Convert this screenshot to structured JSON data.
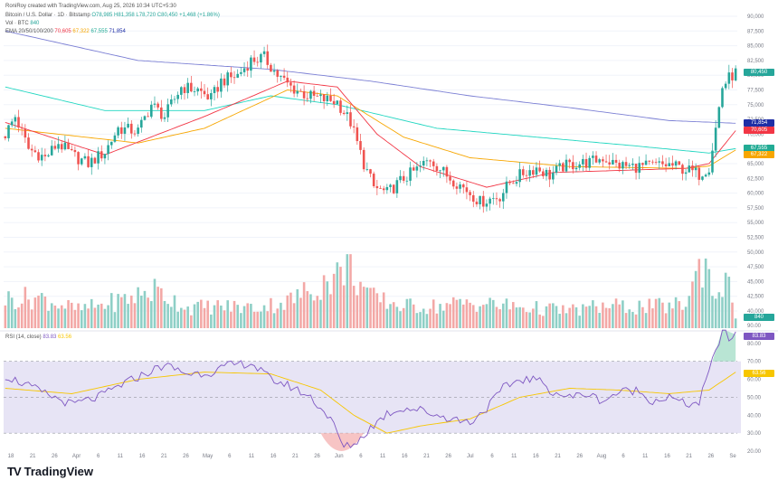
{
  "header": {
    "created_by": "RoniRoy created with TradingView.com, Aug 25, 2026 10:34 UTC+5:30",
    "symbol_line": "Bitcoin / U.S. Dollar · 1D · Bitstamp",
    "ohlc": "O78,985 H81,358 L78,720 C80,450 +1,468 (+1.86%)",
    "vol_line": "Vol · BTC",
    "vol_value": "840",
    "ema_line": "EMA 20/50/100/200",
    "ema20": "70,605",
    "ema50": "67,322",
    "ema100": "67,555",
    "ema200": "71,854",
    "rsi_line": "RSI (14, close)",
    "rsi_value": "83.83",
    "rsi_ma": "63.56"
  },
  "price_axis": {
    "labels": [
      "90,000",
      "87,500",
      "85,000",
      "82,500",
      "80,000",
      "77,500",
      "75,000",
      "72,500",
      "70,000",
      "67,500",
      "65,000",
      "62,500",
      "60,000",
      "57,500",
      "55,000",
      "52,500",
      "50,000",
      "47,500",
      "45,000",
      "42,500",
      "40,000"
    ],
    "tags": [
      {
        "text": "80,450",
        "color": "#26a69a"
      },
      {
        "text": "71,854",
        "color": "#1e2ea6"
      },
      {
        "text": "70,605",
        "color": "#f23645"
      },
      {
        "text": "67,555",
        "color": "#22ab94"
      },
      {
        "text": "67,322",
        "color": "#f7a600"
      }
    ],
    "vol_tag": "840"
  },
  "rsi_axis": {
    "labels": [
      "90.00",
      "80.00",
      "70.00",
      "60.00",
      "50.00",
      "40.00",
      "30.00",
      "20.00"
    ],
    "tags": [
      {
        "text": "83.83",
        "color": "#7e57c2"
      },
      {
        "text": "63.56",
        "color": "#f7c600"
      }
    ]
  },
  "time_axis": {
    "labels": [
      "18",
      "21",
      "26",
      "Apr",
      "6",
      "11",
      "16",
      "21",
      "26",
      "May",
      "6",
      "11",
      "16",
      "21",
      "26",
      "Jun",
      "6",
      "11",
      "16",
      "21",
      "26",
      "Jul",
      "6",
      "11",
      "16",
      "21",
      "26",
      "Aug",
      "6",
      "11",
      "16",
      "21",
      "26",
      "Se"
    ]
  },
  "brand": {
    "text": "TradingView",
    "mark": "TV"
  },
  "colors": {
    "up": "#26a69a",
    "down": "#ef5350",
    "ema20": "#f23645",
    "ema50": "#f7a600",
    "ema100": "#1fd6c0",
    "ema200": "#7b7fd4",
    "rsi": "#7e57c2",
    "rsi_ma": "#f7c600"
  },
  "chart_data": {
    "type": "candlestick",
    "title": "Bitcoin / U.S. Dollar · 1D · Bitstamp",
    "x_start": "2024-03-16",
    "anchors": [
      [
        0,
        70000
      ],
      [
        3,
        73000
      ],
      [
        7,
        67500
      ],
      [
        12,
        66000
      ],
      [
        16,
        68500
      ],
      [
        20,
        66500
      ],
      [
        25,
        65000
      ],
      [
        30,
        67000
      ],
      [
        34,
        71000
      ],
      [
        40,
        70500
      ],
      [
        44,
        75000
      ],
      [
        48,
        73000
      ],
      [
        53,
        78000
      ],
      [
        58,
        77500
      ],
      [
        62,
        76000
      ],
      [
        65,
        79000
      ],
      [
        70,
        80000
      ],
      [
        74,
        82500
      ],
      [
        78,
        83000
      ],
      [
        82,
        80000
      ],
      [
        86,
        78000
      ],
      [
        91,
        76500
      ],
      [
        95,
        76000
      ],
      [
        100,
        75500
      ],
      [
        104,
        72000
      ],
      [
        108,
        65000
      ],
      [
        111,
        61000
      ],
      [
        115,
        60000
      ],
      [
        120,
        62500
      ],
      [
        124,
        64000
      ],
      [
        128,
        65800
      ],
      [
        133,
        63000
      ],
      [
        136,
        61800
      ],
      [
        139,
        60500
      ],
      [
        143,
        58500
      ],
      [
        146,
        59000
      ],
      [
        149,
        59500
      ],
      [
        152,
        61800
      ],
      [
        156,
        63400
      ],
      [
        160,
        64300
      ],
      [
        164,
        63000
      ],
      [
        168,
        64500
      ],
      [
        172,
        65000
      ],
      [
        176,
        65200
      ],
      [
        180,
        66000
      ],
      [
        184,
        64800
      ],
      [
        188,
        64500
      ],
      [
        192,
        64500
      ],
      [
        196,
        64700
      ],
      [
        200,
        64800
      ],
      [
        205,
        64000
      ],
      [
        209,
        63200
      ],
      [
        212,
        64500
      ],
      [
        214,
        71000
      ],
      [
        216,
        78000
      ],
      [
        218,
        79500
      ],
      [
        220,
        80450
      ]
    ],
    "ema200_anchors": [
      [
        0,
        87500
      ],
      [
        40,
        82500
      ],
      [
        80,
        81000
      ],
      [
        110,
        79000
      ],
      [
        140,
        76500
      ],
      [
        170,
        74500
      ],
      [
        200,
        72300
      ],
      [
        220,
        71854
      ]
    ],
    "ema100_anchors": [
      [
        0,
        78000
      ],
      [
        30,
        74000
      ],
      [
        60,
        74000
      ],
      [
        80,
        76500
      ],
      [
        100,
        75000
      ],
      [
        130,
        71000
      ],
      [
        160,
        69500
      ],
      [
        190,
        68000
      ],
      [
        212,
        66800
      ],
      [
        220,
        67555
      ]
    ],
    "ema50_anchors": [
      [
        0,
        71000
      ],
      [
        40,
        68500
      ],
      [
        60,
        71000
      ],
      [
        85,
        77500
      ],
      [
        100,
        76500
      ],
      [
        120,
        69500
      ],
      [
        140,
        66000
      ],
      [
        170,
        64500
      ],
      [
        205,
        64200
      ],
      [
        212,
        64600
      ],
      [
        220,
        67322
      ]
    ],
    "ema20_anchors": [
      [
        0,
        72000
      ],
      [
        30,
        66500
      ],
      [
        60,
        73000
      ],
      [
        85,
        79000
      ],
      [
        100,
        78000
      ],
      [
        112,
        70000
      ],
      [
        125,
        64500
      ],
      [
        145,
        61000
      ],
      [
        165,
        63500
      ],
      [
        205,
        64200
      ],
      [
        212,
        65000
      ],
      [
        220,
        70605
      ]
    ],
    "volume_anchors": [
      [
        0,
        40
      ],
      [
        10,
        42
      ],
      [
        22,
        25
      ],
      [
        35,
        38
      ],
      [
        45,
        52
      ],
      [
        55,
        28
      ],
      [
        65,
        30
      ],
      [
        75,
        28
      ],
      [
        85,
        36
      ],
      [
        100,
        72
      ],
      [
        103,
        86
      ],
      [
        110,
        42
      ],
      [
        120,
        30
      ],
      [
        130,
        30
      ],
      [
        140,
        35
      ],
      [
        150,
        31
      ],
      [
        160,
        27
      ],
      [
        170,
        24
      ],
      [
        180,
        30
      ],
      [
        190,
        29
      ],
      [
        200,
        30
      ],
      [
        205,
        34
      ],
      [
        209,
        82
      ],
      [
        211,
        95
      ],
      [
        213,
        48
      ],
      [
        216,
        60
      ],
      [
        219,
        52
      ],
      [
        220,
        10
      ]
    ],
    "rsi_anchors": [
      [
        0,
        62
      ],
      [
        5,
        58
      ],
      [
        12,
        52
      ],
      [
        20,
        46
      ],
      [
        28,
        50
      ],
      [
        35,
        57
      ],
      [
        42,
        63
      ],
      [
        48,
        68
      ],
      [
        55,
        63
      ],
      [
        62,
        64
      ],
      [
        68,
        68
      ],
      [
        74,
        69
      ],
      [
        80,
        60
      ],
      [
        86,
        56
      ],
      [
        92,
        50
      ],
      [
        98,
        38
      ],
      [
        102,
        22
      ],
      [
        106,
        25
      ],
      [
        110,
        33
      ],
      [
        115,
        41
      ],
      [
        120,
        44
      ],
      [
        125,
        43
      ],
      [
        130,
        40
      ],
      [
        135,
        38
      ],
      [
        140,
        36
      ],
      [
        145,
        44
      ],
      [
        150,
        55
      ],
      [
        155,
        60
      ],
      [
        160,
        60
      ],
      [
        165,
        53
      ],
      [
        170,
        50
      ],
      [
        175,
        52
      ],
      [
        180,
        48
      ],
      [
        185,
        53
      ],
      [
        190,
        54
      ],
      [
        195,
        48
      ],
      [
        200,
        50
      ],
      [
        205,
        46
      ],
      [
        209,
        47
      ],
      [
        213,
        70
      ],
      [
        216,
        87
      ],
      [
        218,
        83
      ],
      [
        220,
        84
      ]
    ],
    "rsi_ma_anchors": [
      [
        0,
        55
      ],
      [
        20,
        52
      ],
      [
        40,
        60
      ],
      [
        60,
        64
      ],
      [
        80,
        63
      ],
      [
        95,
        54
      ],
      [
        105,
        40
      ],
      [
        115,
        30
      ],
      [
        125,
        34
      ],
      [
        140,
        38
      ],
      [
        155,
        50
      ],
      [
        170,
        55
      ],
      [
        185,
        54
      ],
      [
        200,
        52
      ],
      [
        212,
        54
      ],
      [
        220,
        64
      ]
    ],
    "ylim": [
      40000,
      90000
    ],
    "rsi_ylim": [
      20,
      90
    ],
    "rsi_band": [
      30,
      70
    ]
  }
}
